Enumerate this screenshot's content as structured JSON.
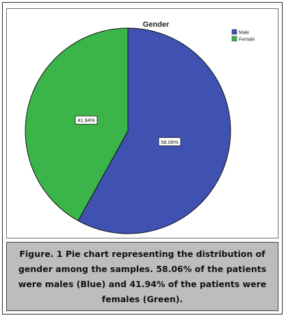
{
  "figure": {
    "caption": "Figure. 1 Pie chart representing the distribution of gender among the samples. 58.06% of the patients were males (Blue) and 41.94% of the patients were females (Green)."
  },
  "chart_data": {
    "type": "pie",
    "title": "Gender",
    "legend_position": "top-right",
    "slices": [
      {
        "name": "Male",
        "value": 58.06,
        "label": "58.06%",
        "color": "#3f51b1"
      },
      {
        "name": "Female",
        "value": 41.94,
        "label": "41.94%",
        "color": "#3bb54a"
      }
    ],
    "edge_color": "#111111"
  }
}
